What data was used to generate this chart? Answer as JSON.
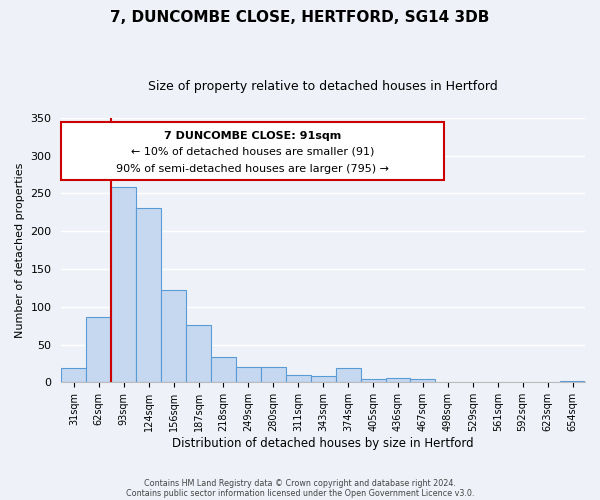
{
  "title": "7, DUNCOMBE CLOSE, HERTFORD, SG14 3DB",
  "subtitle": "Size of property relative to detached houses in Hertford",
  "xlabel": "Distribution of detached houses by size in Hertford",
  "ylabel": "Number of detached properties",
  "categories": [
    "31sqm",
    "62sqm",
    "93sqm",
    "124sqm",
    "156sqm",
    "187sqm",
    "218sqm",
    "249sqm",
    "280sqm",
    "311sqm",
    "343sqm",
    "374sqm",
    "405sqm",
    "436sqm",
    "467sqm",
    "498sqm",
    "529sqm",
    "561sqm",
    "592sqm",
    "623sqm",
    "654sqm"
  ],
  "bar_values": [
    19,
    86,
    258,
    230,
    122,
    76,
    33,
    20,
    20,
    10,
    9,
    19,
    4,
    6,
    4,
    1,
    1,
    0,
    0,
    0,
    2
  ],
  "bar_color": "#c5d8f0",
  "bar_edge_color": "#5b9bd5",
  "ylim": [
    0,
    350
  ],
  "yticks": [
    0,
    50,
    100,
    150,
    200,
    250,
    300,
    350
  ],
  "vline_color": "#cc0000",
  "vline_index": 2,
  "annotation_title": "7 DUNCOMBE CLOSE: 91sqm",
  "annotation_line1": "← 10% of detached houses are smaller (91)",
  "annotation_line2": "90% of semi-detached houses are larger (795) →",
  "annotation_box_color": "#cc0000",
  "footer_line1": "Contains HM Land Registry data © Crown copyright and database right 2024.",
  "footer_line2": "Contains public sector information licensed under the Open Government Licence v3.0.",
  "background_color": "#eef2f8",
  "grid_color": "#ffffff"
}
